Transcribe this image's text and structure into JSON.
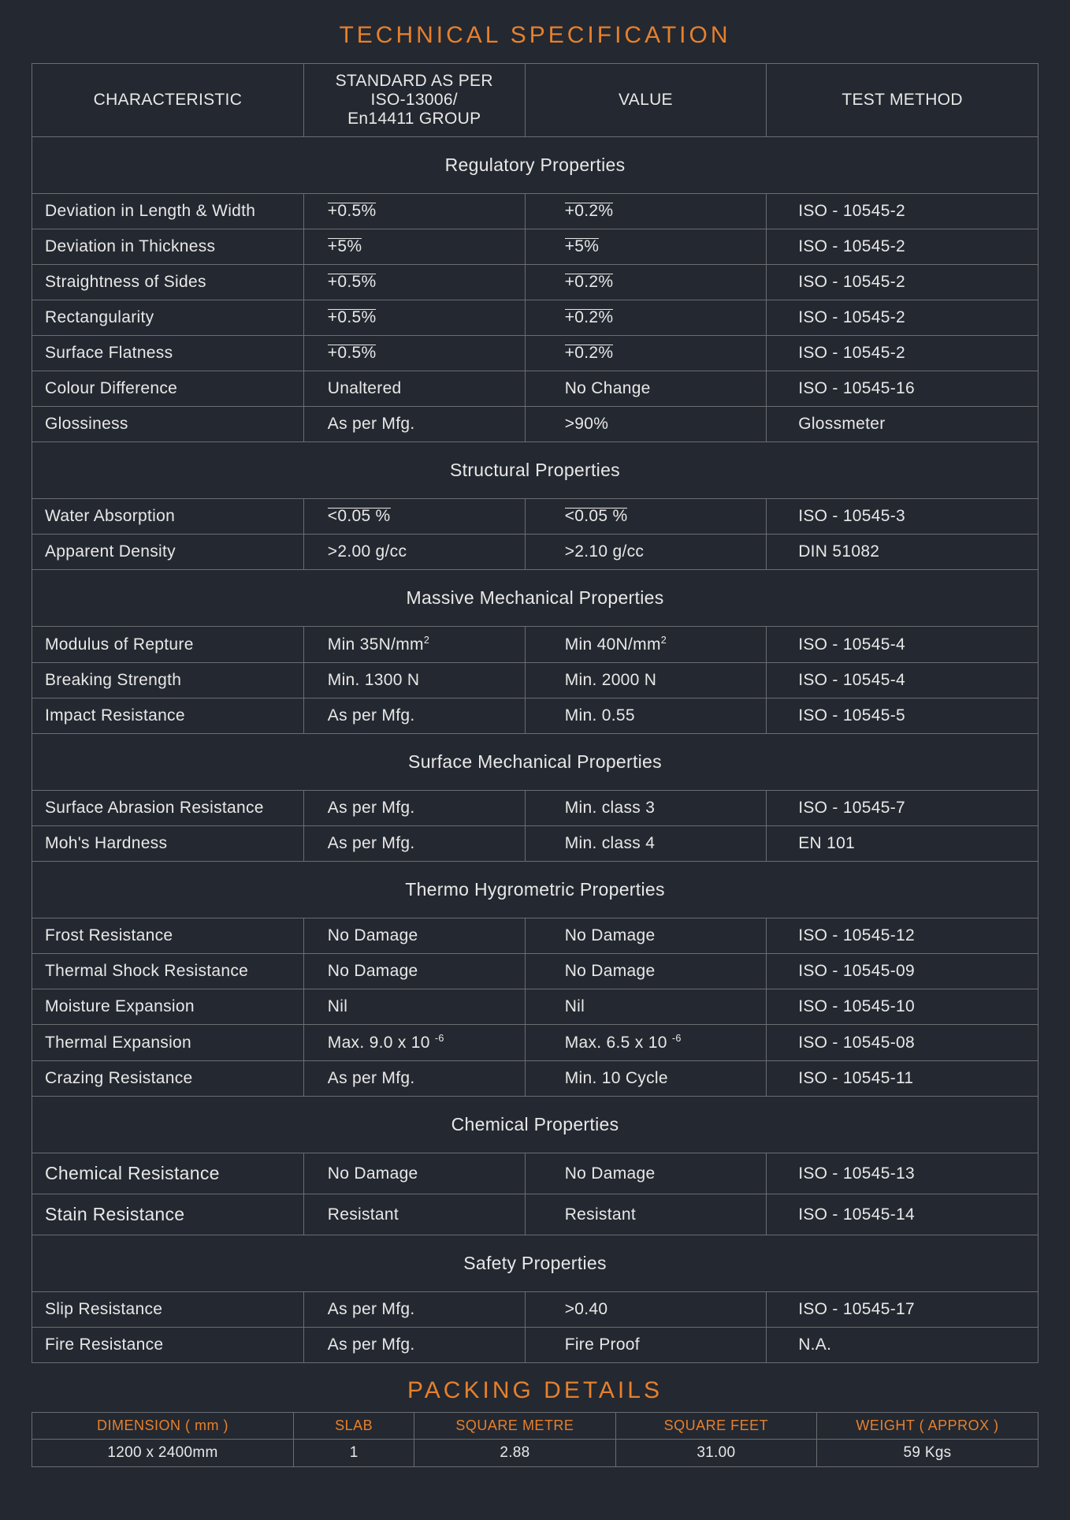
{
  "colors": {
    "background": "#242830",
    "text": "#e8e8e8",
    "accent": "#e6802c",
    "border": "#6a6d72"
  },
  "title": "TECHNICAL SPECIFICATION",
  "headers": {
    "c1": "CHARACTERISTIC",
    "c2_l1": "STANDARD AS PER",
    "c2_l2": "ISO-13006/",
    "c2_l3": "En14411 GROUP",
    "c3": "VALUE",
    "c4": "TEST METHOD"
  },
  "sections": [
    {
      "title": "Regulatory Properties",
      "rows": [
        {
          "c1": "Deviation in Length & Width",
          "c2": "+0.5%",
          "c3": "+0.2%",
          "c4": "ISO - 10545-2",
          "pm": true
        },
        {
          "c1": "Deviation in Thickness",
          "c2": "+5%",
          "c3": "+5%",
          "c4": "ISO - 10545-2",
          "pm": true
        },
        {
          "c1": "Straightness of Sides",
          "c2": "+0.5%",
          "c3": "+0.2%",
          "c4": "ISO - 10545-2",
          "pm": true
        },
        {
          "c1": "Rectangularity",
          "c2": "+0.5%",
          "c3": "+0.2%",
          "c4": "ISO - 10545-2",
          "pm": true
        },
        {
          "c1": "Surface Flatness",
          "c2": "+0.5%",
          "c3": "+0.2%",
          "c4": "ISO - 10545-2",
          "pm": true
        },
        {
          "c1": "Colour Difference",
          "c2": "Unaltered",
          "c3": "No Change",
          "c4": "ISO - 10545-16"
        },
        {
          "c1": "Glossiness",
          "c2": "As per Mfg.",
          "c3": ">90%",
          "c4": "Glossmeter"
        }
      ]
    },
    {
      "title": "Structural Properties",
      "rows": [
        {
          "c1": "Water Absorption",
          "c2": "<0.05 %",
          "c3": "<0.05 %",
          "c4": "ISO - 10545-3",
          "lte": true
        },
        {
          "c1": "Apparent Density",
          "c2": ">2.00 g/cc",
          "c3": ">2.10 g/cc",
          "c4": "DIN 51082"
        }
      ]
    },
    {
      "title": "Massive Mechanical Properties",
      "rows": [
        {
          "c1": "Modulus of Repture",
          "c2": "Min 35N/mm",
          "c3": "Min 40N/mm",
          "c4": "ISO - 10545-4",
          "sq": true
        },
        {
          "c1": "Breaking Strength",
          "c2": "Min. 1300 N",
          "c3": "Min. 2000 N",
          "c4": "ISO - 10545-4"
        },
        {
          "c1": "Impact Resistance",
          "c2": "As per Mfg.",
          "c3": "Min. 0.55",
          "c4": "ISO - 10545-5"
        }
      ]
    },
    {
      "title": "Surface Mechanical Properties",
      "rows": [
        {
          "c1": "Surface Abrasion Resistance",
          "c2": "As per Mfg.",
          "c3": "Min. class 3",
          "c4": "ISO - 10545-7"
        },
        {
          "c1": "Moh's Hardness",
          "c2": "As per Mfg.",
          "c3": "Min. class 4",
          "c4": "EN 101"
        }
      ]
    },
    {
      "title": "Thermo Hygrometric Properties",
      "rows": [
        {
          "c1": "Frost Resistance",
          "c2": "No Damage",
          "c3": "No Damage",
          "c4": "ISO - 10545-12"
        },
        {
          "c1": "Thermal Shock Resistance",
          "c2": "No Damage",
          "c3": "No Damage",
          "c4": "ISO - 10545-09"
        },
        {
          "c1": "Moisture Expansion",
          "c2": "Nil",
          "c3": "Nil",
          "c4": "ISO - 10545-10"
        },
        {
          "c1": "Thermal Expansion",
          "c2": "Max. 9.0 x 10",
          "c3": "Max. 6.5 x 10",
          "c4": "ISO - 10545-08",
          "exp": "-6"
        },
        {
          "c1": "Crazing Resistance",
          "c2": "As per Mfg.",
          "c3": "Min. 10 Cycle",
          "c4": "ISO - 10545-11"
        }
      ]
    },
    {
      "title": "Chemical Properties",
      "rows": [
        {
          "c1": "Chemical Resistance",
          "c2": "No Damage",
          "c3": "No Damage",
          "c4": "ISO - 10545-13",
          "big": true
        },
        {
          "c1": "Stain Resistance",
          "c2": "Resistant",
          "c3": "Resistant",
          "c4": "ISO - 10545-14",
          "big": true
        }
      ]
    },
    {
      "title": "Safety Properties",
      "rows": [
        {
          "c1": "Slip Resistance",
          "c2": "As per Mfg.",
          "c3": ">0.40",
          "c4": "ISO - 10545-17"
        },
        {
          "c1": "Fire Resistance",
          "c2": "As per Mfg.",
          "c3": "Fire Proof",
          "c4": "N.A."
        }
      ]
    }
  ],
  "packing": {
    "title": "PACKING DETAILS",
    "headers": [
      "DIMENSION ( mm )",
      "SLAB",
      "SQUARE METRE",
      "SQUARE FEET",
      "WEIGHT ( APPROX )"
    ],
    "row": [
      "1200 x 2400mm",
      "1",
      "2.88",
      "31.00",
      "59 Kgs"
    ],
    "col_widths": [
      "26%",
      "12%",
      "20%",
      "20%",
      "22%"
    ]
  }
}
